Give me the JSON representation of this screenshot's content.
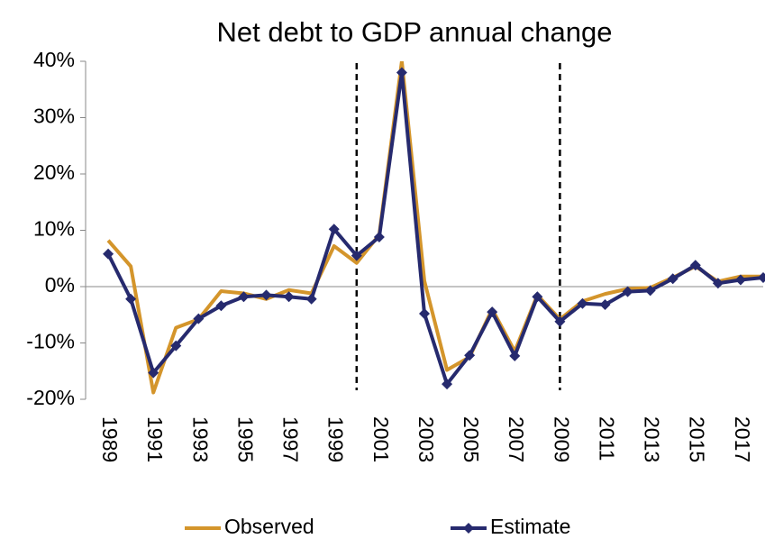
{
  "chart_data": {
    "type": "line",
    "title": "Net debt to GDP annual change",
    "x": [
      1989,
      1990,
      1991,
      1992,
      1993,
      1994,
      1995,
      1996,
      1997,
      1998,
      1999,
      2000,
      2001,
      2002,
      2003,
      2004,
      2005,
      2006,
      2007,
      2008,
      2009,
      2010,
      2011,
      2012,
      2013,
      2014,
      2015,
      2016,
      2017,
      2018
    ],
    "series": [
      {
        "name": "Observed",
        "color": "#d4952b",
        "marker": "none",
        "values": [
          8.2,
          3.6,
          -18.8,
          -7.3,
          -5.8,
          -0.8,
          -1.2,
          -2.2,
          -0.6,
          -1.2,
          7.2,
          4.2,
          9.2,
          40,
          1.0,
          -14.8,
          -12.5,
          -4.0,
          -11.5,
          -1.5,
          -5.8,
          -2.6,
          -1.3,
          -0.4,
          -0.2,
          1.6,
          3.6,
          0.9,
          1.8,
          1.8
        ]
      },
      {
        "name": "Estimate",
        "color": "#262a6e",
        "marker": "diamond",
        "values": [
          5.8,
          -2.2,
          -15.3,
          -10.5,
          -5.7,
          -3.4,
          -1.8,
          -1.5,
          -1.8,
          -2.2,
          10.2,
          5.5,
          8.8,
          38,
          -4.8,
          -17.3,
          -12.2,
          -4.5,
          -12.3,
          -1.8,
          -6.2,
          -3.0,
          -3.2,
          -0.9,
          -0.7,
          1.4,
          3.8,
          0.6,
          1.2,
          1.6
        ]
      }
    ],
    "xlim": [
      1988,
      2018
    ],
    "xticks": [
      1989,
      1991,
      1993,
      1995,
      1997,
      1999,
      2001,
      2003,
      2005,
      2007,
      2009,
      2011,
      2013,
      2015,
      2017
    ],
    "ylim": [
      -20,
      40
    ],
    "yticks": [
      {
        "value": 40,
        "label": "40%"
      },
      {
        "value": 30,
        "label": "30%"
      },
      {
        "value": 20,
        "label": "20%"
      },
      {
        "value": 10,
        "label": "10%"
      },
      {
        "value": 0,
        "label": "0%"
      },
      {
        "value": -10,
        "label": "-10%"
      },
      {
        "value": -20,
        "label": "-20%"
      }
    ],
    "reference_lines": [
      2000,
      2009
    ],
    "legend": "bottom"
  }
}
